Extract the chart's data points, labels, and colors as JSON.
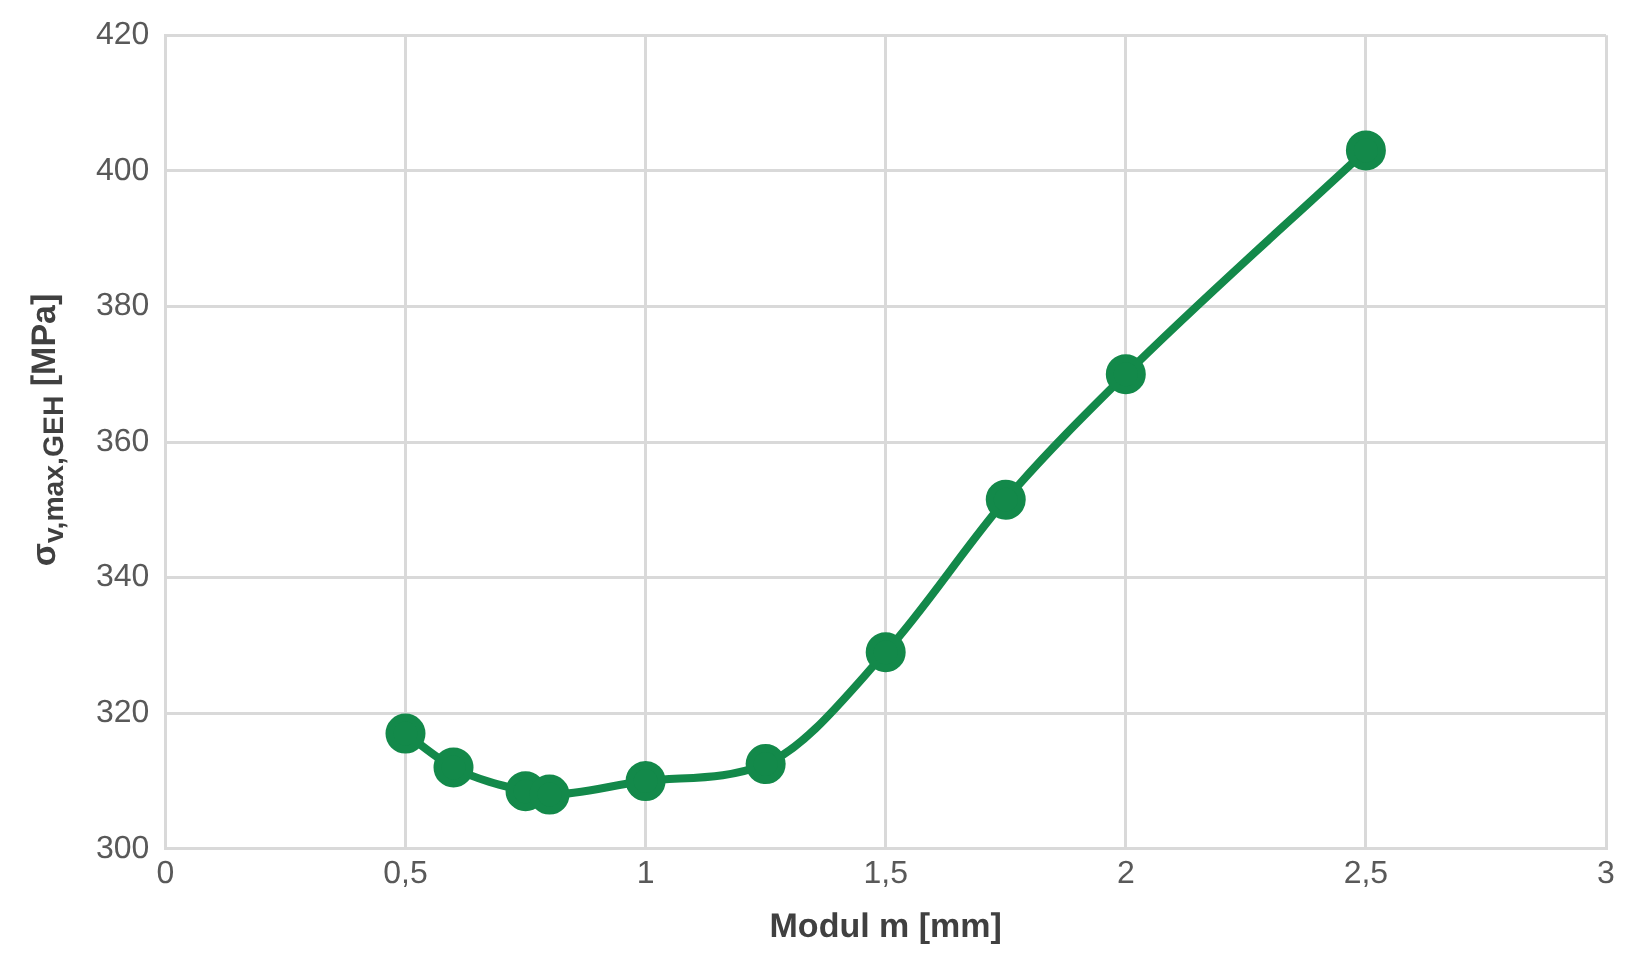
{
  "chart_data": {
    "type": "line",
    "xlabel": "Modul m [mm]",
    "ylabel": "σ$_{v,max,GEH}$ [MPa]",
    "x": [
      0.5,
      0.6,
      0.75,
      0.8,
      1,
      1.25,
      1.5,
      1.75,
      2,
      2.5
    ],
    "series": [
      {
        "color": "#13894a",
        "values": [
          317,
          312,
          308.5,
          308,
          310,
          312.5,
          329,
          351.5,
          370,
          403
        ]
      }
    ],
    "xlim": [
      0,
      3
    ],
    "xticks": [
      0,
      {
        "value": 0.5,
        "label": "0,5"
      },
      1,
      {
        "value": 1.5,
        "label": "1,5"
      },
      2,
      {
        "value": 2.5,
        "label": "2,5"
      },
      3
    ],
    "ylim": [
      300,
      420
    ],
    "yticks": [
      300,
      320,
      340,
      360,
      380,
      400,
      420
    ],
    "grid": true,
    "legend": false,
    "marker": "circle",
    "line_style": "solid"
  }
}
